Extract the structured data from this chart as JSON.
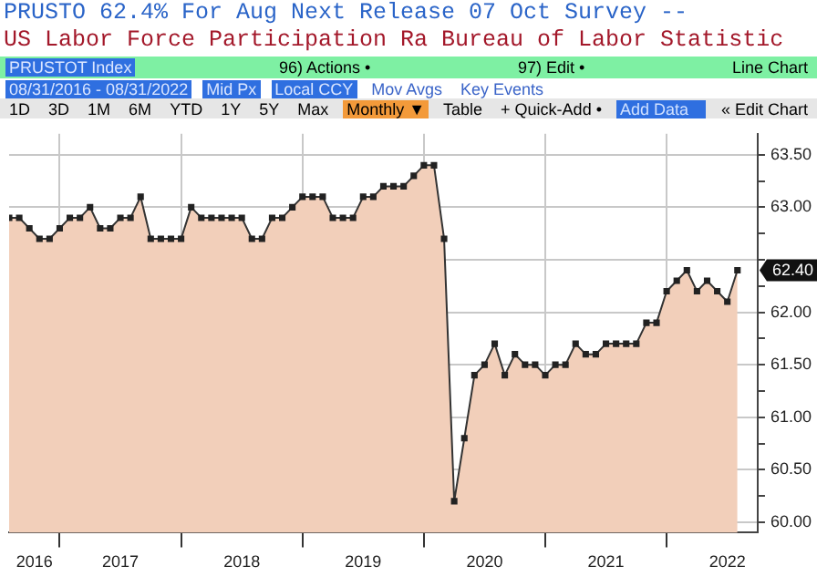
{
  "chart_data": {
    "type": "area",
    "title": "PRUSTO 62.4%  For Aug  Next Release 07 Oct  Survey --",
    "subtitle": "US Labor Force Participation Ra Bureau of Labor Statistic",
    "x": [
      "2016-08",
      "2016-09",
      "2016-10",
      "2016-11",
      "2016-12",
      "2017-01",
      "2017-02",
      "2017-03",
      "2017-04",
      "2017-05",
      "2017-06",
      "2017-07",
      "2017-08",
      "2017-09",
      "2017-10",
      "2017-11",
      "2017-12",
      "2018-01",
      "2018-02",
      "2018-03",
      "2018-04",
      "2018-05",
      "2018-06",
      "2018-07",
      "2018-08",
      "2018-09",
      "2018-10",
      "2018-11",
      "2018-12",
      "2019-01",
      "2019-02",
      "2019-03",
      "2019-04",
      "2019-05",
      "2019-06",
      "2019-07",
      "2019-08",
      "2019-09",
      "2019-10",
      "2019-11",
      "2019-12",
      "2020-01",
      "2020-02",
      "2020-03",
      "2020-04",
      "2020-05",
      "2020-06",
      "2020-07",
      "2020-08",
      "2020-09",
      "2020-10",
      "2020-11",
      "2020-12",
      "2021-01",
      "2021-02",
      "2021-03",
      "2021-04",
      "2021-05",
      "2021-06",
      "2021-07",
      "2021-08",
      "2021-09",
      "2021-10",
      "2021-11",
      "2021-12",
      "2022-01",
      "2022-02",
      "2022-03",
      "2022-04",
      "2022-05",
      "2022-06",
      "2022-07",
      "2022-08"
    ],
    "series": [
      {
        "color": "#f2cfba",
        "values": [
          62.9,
          62.9,
          62.8,
          62.7,
          62.7,
          62.8,
          62.9,
          62.9,
          63.0,
          62.8,
          62.8,
          62.9,
          62.9,
          63.1,
          62.7,
          62.7,
          62.7,
          62.7,
          63.0,
          62.9,
          62.9,
          62.9,
          62.9,
          62.9,
          62.7,
          62.7,
          62.9,
          62.9,
          63.0,
          63.1,
          63.1,
          63.1,
          62.9,
          62.9,
          62.9,
          63.1,
          63.1,
          63.2,
          63.2,
          63.2,
          63.3,
          63.4,
          63.4,
          62.7,
          60.2,
          60.8,
          61.4,
          61.5,
          61.7,
          61.4,
          61.6,
          61.5,
          61.5,
          61.4,
          61.5,
          61.5,
          61.7,
          61.6,
          61.6,
          61.7,
          61.7,
          61.7,
          61.7,
          61.9,
          61.9,
          62.2,
          62.3,
          62.4,
          62.2,
          62.3,
          62.2,
          62.1,
          62.4
        ]
      }
    ],
    "xlim": [
      "2016-08",
      "2022-10"
    ],
    "xticks": [
      {
        "value": "2016-10-16",
        "label": "2016"
      },
      {
        "value": "2017-01",
        "label": null
      },
      {
        "value": "2017-07",
        "label": "2017"
      },
      {
        "value": "2018-01",
        "label": null
      },
      {
        "value": "2018-07",
        "label": "2018"
      },
      {
        "value": "2019-01",
        "label": null
      },
      {
        "value": "2019-07",
        "label": "2019"
      },
      {
        "value": "2020-01",
        "label": null
      },
      {
        "value": "2020-07",
        "label": "2020"
      },
      {
        "value": "2021-01",
        "label": null
      },
      {
        "value": "2021-07",
        "label": "2021"
      },
      {
        "value": "2022-01",
        "label": null
      },
      {
        "value": "2022-07",
        "label": "2022"
      }
    ],
    "ylim": [
      59.9,
      63.7
    ],
    "yticks": [
      {
        "value": 60,
        "label": "60.00"
      },
      {
        "value": 60.25,
        "label": null
      },
      {
        "value": 60.5,
        "label": "60.50"
      },
      {
        "value": 60.75,
        "label": null
      },
      {
        "value": 61,
        "label": "61.00"
      },
      {
        "value": 61.25,
        "label": null
      },
      {
        "value": 61.5,
        "label": "61.50"
      },
      {
        "value": 61.75,
        "label": null
      },
      {
        "value": 62,
        "label": "62.00"
      },
      {
        "value": 62.25,
        "label": null
      },
      {
        "value": 62.5,
        "label": null
      },
      {
        "value": 62.75,
        "label": null
      },
      {
        "value": 63,
        "label": "63.00"
      },
      {
        "value": 63.25,
        "label": null
      },
      {
        "value": 63.5,
        "label": "63.50"
      }
    ],
    "grid": true,
    "marker": "square",
    "legend": false,
    "annotations": [
      "PRUSTOT Index",
      "96) Actions •",
      "97) Edit •",
      "Line Chart",
      "08/31/2016 - 08/31/2022",
      "Mid Px",
      "Local CCY",
      "Mov Avgs",
      "Key Events",
      "1D",
      "3D",
      "1M",
      "6M",
      "YTD",
      "1Y",
      "5Y",
      "Max",
      "Monthly ▼",
      "Table",
      "+ Quick-Add •",
      "Add Data",
      "« Edit Chart",
      {
        "text": "62.40",
        "x": "2022-08",
        "y": 62.4
      }
    ]
  }
}
